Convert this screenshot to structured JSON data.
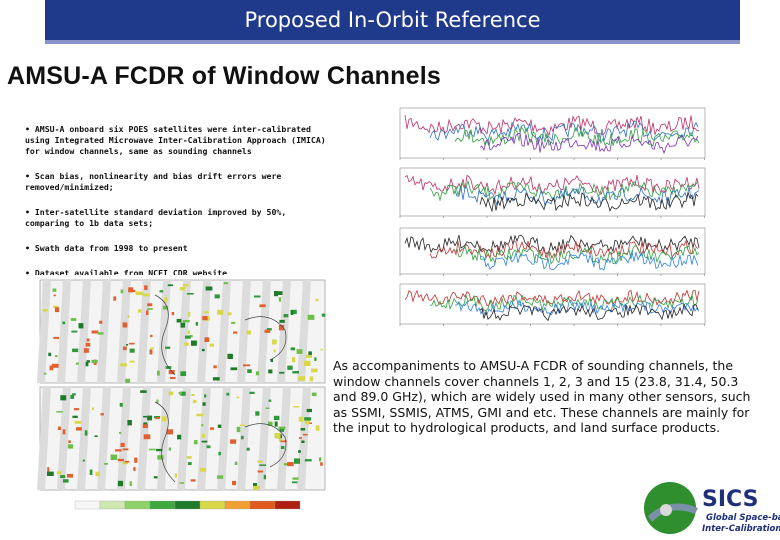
{
  "banner": {
    "title": "Proposed In-Orbit Reference"
  },
  "slide": {
    "heading": "AMSU-A FCDR of Window Channels"
  },
  "bullets": [
    "• AMSU-A onboard six POES satellites were inter-calibrated using Integrated Microwave Inter-Calibration Approach (IMICA) for window channels, same as sounding channels",
    "• Scan bias, nonlinearity and bias drift errors were removed/minimized;",
    "• Inter-satellite standard deviation improved by 50%, comparing to 1b data sets;",
    "• Swath data from 1998 to present",
    "• Dataset available from NCEI CDR website"
  ],
  "paragraph": "As accompaniments to AMSU-A FCDR of sounding channels, the window channels cover channels 1, 2, 3 and 15 (23.8, 31.4, 50.3 and 89.0 GHz), which are widely used in many other sensors, such as SSMI, SSMIS, ATMS, GMI and etc. These channels are mainly for the input to hydrological products, and land surface products.",
  "logo": {
    "letters": "SICS",
    "line1": "Global Space-based",
    "line2": "Inter-Calibration System"
  },
  "colors": {
    "banner": "#1f3a8a",
    "accent_line": "#8a93c8",
    "logo_blue": "#1f2f7a",
    "logo_green": "#2f8f2f"
  }
}
